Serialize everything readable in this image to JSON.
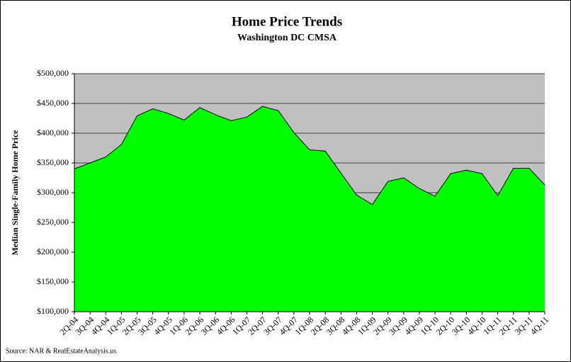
{
  "chart_data": {
    "type": "area",
    "title": "Home Price Trends",
    "subtitle": "Washington DC CMSA",
    "y_label": "Median Single-Family Home Price",
    "source": "Source: NAR & RealEstateAnalysis.us",
    "categories": [
      "2Q-04",
      "3Q-04",
      "4Q-04",
      "1Q-05",
      "2Q-05",
      "3Q-05",
      "4Q-05",
      "1Q-06",
      "2Q-06",
      "3Q-06",
      "4Q-06",
      "1Q-07",
      "2Q-07",
      "3Q-07",
      "4Q-07",
      "1Q-08",
      "2Q-08",
      "3Q-08",
      "4Q-08",
      "1Q-09",
      "2Q-09",
      "3Q-09",
      "4Q-09",
      "1Q-10",
      "2Q-10",
      "3Q-10",
      "4Q-10",
      "1Q-11",
      "2Q-11",
      "3Q-11",
      "4Q-11"
    ],
    "values": [
      340000,
      350000,
      360000,
      381000,
      429000,
      441000,
      433000,
      422000,
      443000,
      431000,
      421000,
      427000,
      445000,
      438000,
      401000,
      372000,
      370000,
      333000,
      296000,
      280000,
      319000,
      325000,
      307000,
      294000,
      332000,
      338000,
      332000,
      295000,
      341000,
      341000,
      313000
    ],
    "color": "#00ff00",
    "ylim": [
      100000,
      500000
    ],
    "yticks": [
      {
        "value": 100000,
        "label": "$100,000"
      },
      {
        "value": 150000,
        "label": "$150,000"
      },
      {
        "value": 200000,
        "label": "$200,000"
      },
      {
        "value": 250000,
        "label": "$250,000"
      },
      {
        "value": 300000,
        "label": "$300,000"
      },
      {
        "value": 350000,
        "label": "$350,000"
      },
      {
        "value": 400000,
        "label": "$400,000"
      },
      {
        "value": 450000,
        "label": "$450,000"
      },
      {
        "value": 500000,
        "label": "$500,000"
      }
    ],
    "grid": true
  }
}
